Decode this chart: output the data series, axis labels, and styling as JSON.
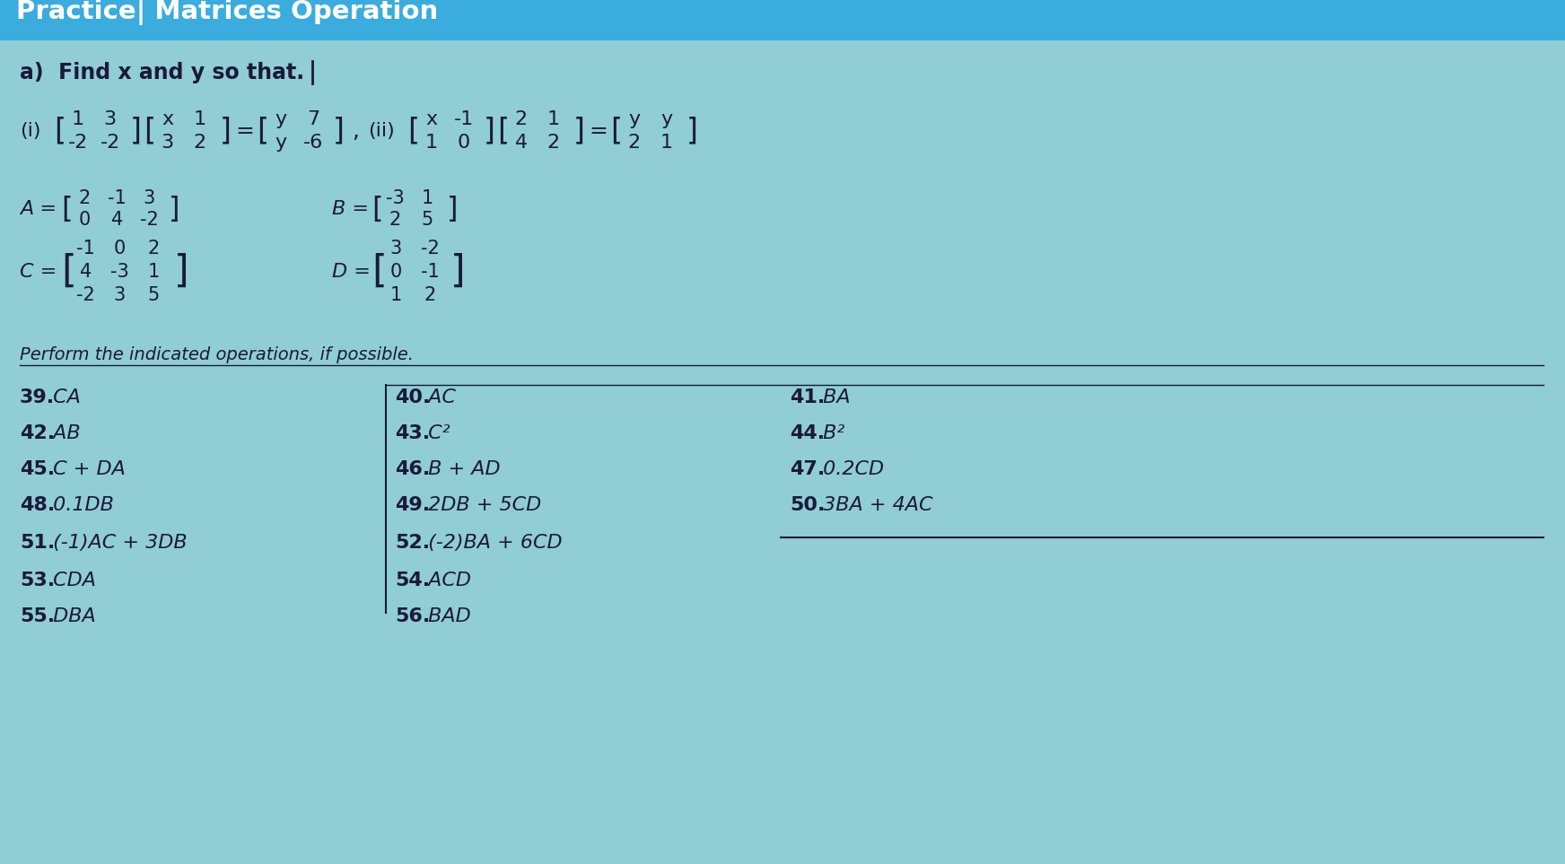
{
  "title": "Practice| Matrices Operation",
  "title_bg": "#3aacde",
  "bg_color": "#90cdd4",
  "font_color": "#1a1a3a",
  "section_a": "a)  Find x and y so that.",
  "perform_text": "Perform the indicated operations, if possible.",
  "eq_i": {
    "m1": [
      [
        "1",
        "3"
      ],
      [
        "-2",
        "-2"
      ]
    ],
    "m2": [
      [
        "x",
        "1"
      ],
      [
        "3",
        "2"
      ]
    ],
    "m3": [
      [
        "y",
        "7"
      ],
      [
        "y",
        "-6"
      ]
    ]
  },
  "eq_ii": {
    "m1": [
      [
        "x",
        "-1"
      ],
      [
        "1",
        "0"
      ]
    ],
    "m2": [
      [
        "2",
        "1"
      ],
      [
        "4",
        "2"
      ]
    ],
    "m3": [
      [
        "y",
        "y"
      ],
      [
        "2",
        "1"
      ]
    ]
  },
  "matA": [
    [
      "2",
      "-1",
      "3"
    ],
    [
      "0",
      "4",
      "-2"
    ]
  ],
  "matB": [
    [
      "-3",
      "1"
    ],
    [
      "2",
      "5"
    ]
  ],
  "matC": [
    [
      "-1",
      "0",
      "2"
    ],
    [
      "4",
      "-3",
      "1"
    ],
    [
      "-2",
      "3",
      "5"
    ]
  ],
  "matD": [
    [
      "3",
      "-2"
    ],
    [
      "0",
      "-1"
    ],
    [
      "1",
      "2"
    ]
  ],
  "problems_col1": [
    "39. CA",
    "42. AB",
    "45. C + DA",
    "48. 0.1DB",
    "51. (-1)AC + 3DB",
    "53. CDA",
    "55. DBA"
  ],
  "problems_col2": [
    "40. AC",
    "43. C²",
    "46. B + AD",
    "49. 2DB + 5CD",
    "52. (-2)BA + 6CD",
    "54. ACD",
    "56. BAD"
  ],
  "problems_col3": [
    "41. BA",
    "44. B²",
    "47. 0.2CD",
    "50. 3BA + 4AC",
    "",
    "",
    ""
  ]
}
